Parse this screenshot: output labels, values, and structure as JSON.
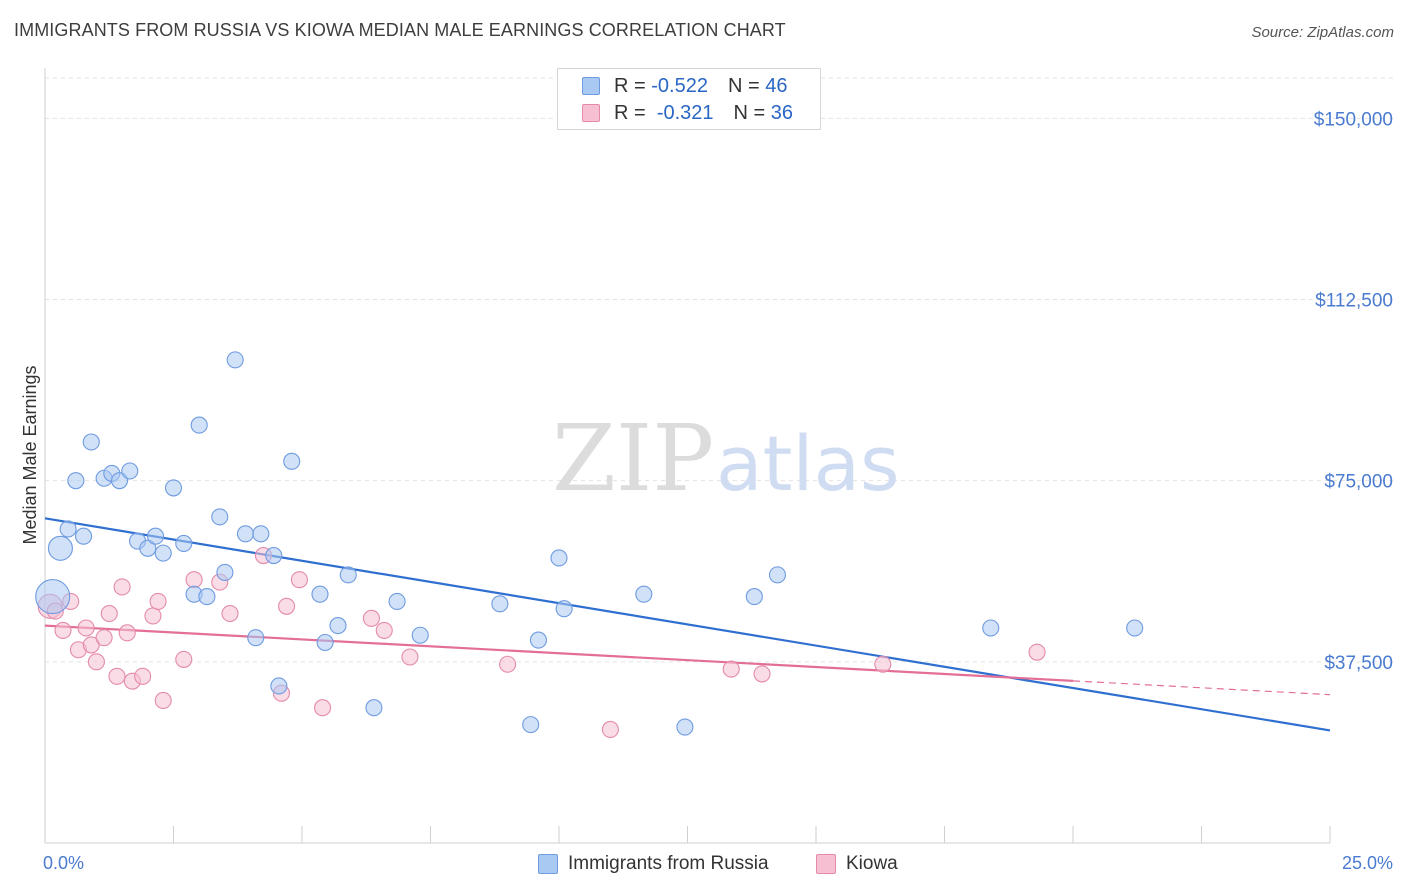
{
  "title": "IMMIGRANTS FROM RUSSIA VS KIOWA MEDIAN MALE EARNINGS CORRELATION CHART",
  "source": "Source: ZipAtlas.com",
  "watermark": {
    "zip": "ZIP",
    "atlas": "atlas"
  },
  "legend_top": {
    "rows": [
      {
        "r_label": "R =",
        "r_value": "-0.522",
        "n_label": "N =",
        "n_value": "46",
        "color": "#a9c8f2",
        "border": "#6f9be0"
      },
      {
        "r_label": "R =",
        "r_value": "-0.321",
        "n_label": "N =",
        "n_value": "36",
        "color": "#f6bfd2",
        "border": "#e48aab"
      }
    ]
  },
  "legend_bottom": {
    "items": [
      {
        "label": "Immigrants from Russia",
        "color": "#a9c8f2",
        "border": "#6f9be0"
      },
      {
        "label": "Kiowa",
        "color": "#f6bfd2",
        "border": "#e48aab"
      }
    ]
  },
  "chart_data": {
    "type": "scatter",
    "ylabel": "Median Male Earnings",
    "xlim": [
      0,
      25
    ],
    "ylim": [
      0,
      160000
    ],
    "x_tick_labels": [
      "0.0%",
      "25.0%"
    ],
    "y_ticks": [
      37500,
      75000,
      112500,
      150000
    ],
    "y_tick_labels": [
      "$37,500",
      "$75,000",
      "$112,500",
      "$150,000"
    ],
    "grid": true,
    "series": [
      {
        "name": "Immigrants from Russia",
        "color": "#a9c8f2",
        "stroke": "#6f9be0",
        "line_color": "#2f6fd0",
        "trend": {
          "x": [
            0,
            25
          ],
          "y": [
            67200,
            23300
          ],
          "dashed_from": null
        },
        "points": [
          {
            "x": 0.15,
            "y": 51000,
            "size": "large"
          },
          {
            "x": 0.3,
            "y": 61000,
            "size": "medium"
          },
          {
            "x": 0.45,
            "y": 65000
          },
          {
            "x": 0.75,
            "y": 63500
          },
          {
            "x": 0.6,
            "y": 75000
          },
          {
            "x": 0.9,
            "y": 83000
          },
          {
            "x": 1.15,
            "y": 75500
          },
          {
            "x": 1.3,
            "y": 76500
          },
          {
            "x": 1.45,
            "y": 75000
          },
          {
            "x": 1.65,
            "y": 77000
          },
          {
            "x": 1.8,
            "y": 62500
          },
          {
            "x": 2.0,
            "y": 61000
          },
          {
            "x": 2.15,
            "y": 63500
          },
          {
            "x": 2.3,
            "y": 60000
          },
          {
            "x": 2.5,
            "y": 73500
          },
          {
            "x": 2.7,
            "y": 62000
          },
          {
            "x": 2.9,
            "y": 51500
          },
          {
            "x": 3.0,
            "y": 86500
          },
          {
            "x": 3.15,
            "y": 51000
          },
          {
            "x": 3.4,
            "y": 67500
          },
          {
            "x": 3.5,
            "y": 56000
          },
          {
            "x": 3.7,
            "y": 100000
          },
          {
            "x": 3.9,
            "y": 64000
          },
          {
            "x": 4.1,
            "y": 42500
          },
          {
            "x": 4.2,
            "y": 64000
          },
          {
            "x": 4.45,
            "y": 59500
          },
          {
            "x": 4.55,
            "y": 32500
          },
          {
            "x": 4.8,
            "y": 79000
          },
          {
            "x": 5.35,
            "y": 51500
          },
          {
            "x": 5.45,
            "y": 41500
          },
          {
            "x": 5.7,
            "y": 45000
          },
          {
            "x": 5.9,
            "y": 55500
          },
          {
            "x": 6.4,
            "y": 28000
          },
          {
            "x": 6.85,
            "y": 50000
          },
          {
            "x": 7.3,
            "y": 43000
          },
          {
            "x": 8.85,
            "y": 49500
          },
          {
            "x": 9.45,
            "y": 24500
          },
          {
            "x": 9.6,
            "y": 42000
          },
          {
            "x": 10.0,
            "y": 59000
          },
          {
            "x": 10.1,
            "y": 48500
          },
          {
            "x": 11.65,
            "y": 51500
          },
          {
            "x": 12.45,
            "y": 24000
          },
          {
            "x": 13.8,
            "y": 51000
          },
          {
            "x": 14.25,
            "y": 55500
          },
          {
            "x": 18.4,
            "y": 44500
          },
          {
            "x": 21.2,
            "y": 44500
          }
        ]
      },
      {
        "name": "Kiowa",
        "color": "#f6bfd2",
        "stroke": "#e48aab",
        "line_color": "#e36f97",
        "trend": {
          "x": [
            0,
            25
          ],
          "y": [
            45000,
            30700
          ],
          "dashed_from": 20.0
        },
        "points": [
          {
            "x": 0.1,
            "y": 49000,
            "size": "medium"
          },
          {
            "x": 0.2,
            "y": 48000
          },
          {
            "x": 0.35,
            "y": 44000
          },
          {
            "x": 0.5,
            "y": 50000
          },
          {
            "x": 0.65,
            "y": 40000
          },
          {
            "x": 0.8,
            "y": 44500
          },
          {
            "x": 0.9,
            "y": 41000
          },
          {
            "x": 1.0,
            "y": 37500
          },
          {
            "x": 1.15,
            "y": 42500
          },
          {
            "x": 1.25,
            "y": 47500
          },
          {
            "x": 1.4,
            "y": 34500
          },
          {
            "x": 1.5,
            "y": 53000
          },
          {
            "x": 1.6,
            "y": 43500
          },
          {
            "x": 1.7,
            "y": 33500
          },
          {
            "x": 1.9,
            "y": 34500
          },
          {
            "x": 2.1,
            "y": 47000
          },
          {
            "x": 2.2,
            "y": 50000
          },
          {
            "x": 2.3,
            "y": 29500
          },
          {
            "x": 2.7,
            "y": 38000
          },
          {
            "x": 2.9,
            "y": 54500
          },
          {
            "x": 3.4,
            "y": 54000
          },
          {
            "x": 3.6,
            "y": 47500
          },
          {
            "x": 4.25,
            "y": 59500
          },
          {
            "x": 4.6,
            "y": 31000
          },
          {
            "x": 4.7,
            "y": 49000
          },
          {
            "x": 4.95,
            "y": 54500
          },
          {
            "x": 5.4,
            "y": 28000
          },
          {
            "x": 6.35,
            "y": 46500
          },
          {
            "x": 6.6,
            "y": 44000
          },
          {
            "x": 7.1,
            "y": 38500
          },
          {
            "x": 9.0,
            "y": 37000
          },
          {
            "x": 11.0,
            "y": 23500
          },
          {
            "x": 13.35,
            "y": 36000
          },
          {
            "x": 13.95,
            "y": 35000
          },
          {
            "x": 16.3,
            "y": 37000
          },
          {
            "x": 19.3,
            "y": 39500
          }
        ]
      }
    ]
  }
}
